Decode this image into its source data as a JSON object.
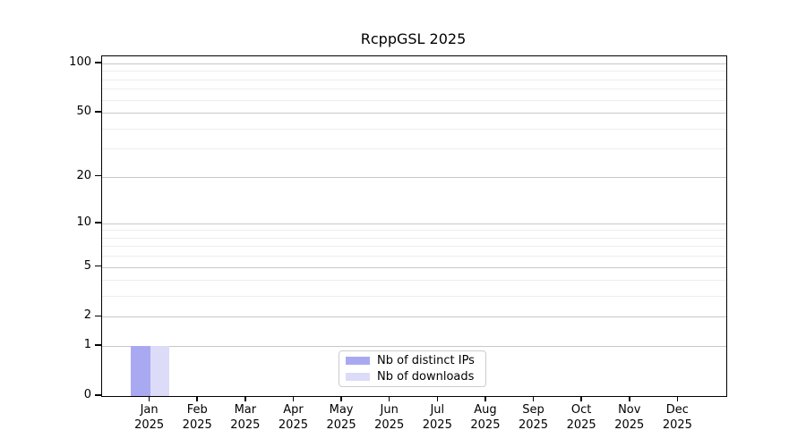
{
  "chart_data": {
    "type": "bar",
    "title": "RcppGSL 2025",
    "year": "2025",
    "months": [
      "Jan",
      "Feb",
      "Mar",
      "Apr",
      "May",
      "Jun",
      "Jul",
      "Aug",
      "Sep",
      "Oct",
      "Nov",
      "Dec"
    ],
    "categories": [
      "Jan 2025",
      "Feb 2025",
      "Mar 2025",
      "Apr 2025",
      "May 2025",
      "Jun 2025",
      "Jul 2025",
      "Aug 2025",
      "Sep 2025",
      "Oct 2025",
      "Nov 2025",
      "Dec 2025"
    ],
    "series": [
      {
        "name": "Nb of distinct IPs",
        "color": "#a9a9f2",
        "values": [
          1,
          0,
          0,
          0,
          0,
          0,
          0,
          0,
          0,
          0,
          0,
          0
        ]
      },
      {
        "name": "Nb of downloads",
        "color": "#dcdcf8",
        "values": [
          1,
          0,
          0,
          0,
          0,
          0,
          0,
          0,
          0,
          0,
          0,
          0
        ]
      }
    ],
    "xlabel": "",
    "ylabel": "",
    "yscale": "log1p",
    "ylim": [
      0,
      110
    ],
    "grid": "horizontal",
    "major_ticks": [
      {
        "value": 0,
        "label": "0"
      },
      {
        "value": 1,
        "label": "1"
      },
      {
        "value": 2,
        "label": "2"
      },
      {
        "value": 5,
        "label": "5"
      },
      {
        "value": 10,
        "label": "10"
      },
      {
        "value": 20,
        "label": "20"
      },
      {
        "value": 50,
        "label": "50"
      },
      {
        "value": 100,
        "label": "100"
      }
    ],
    "minor_gridlines": [
      3,
      4,
      6,
      7,
      8,
      9,
      30,
      40,
      60,
      70,
      80,
      90
    ],
    "legend": {
      "position": "lower center",
      "entries": [
        "Nb of distinct IPs",
        "Nb of downloads"
      ]
    },
    "colors": {
      "major_grid": "#c8c8c8",
      "minor_grid": "#ededed",
      "axis": "#000000",
      "background": "#ffffff"
    }
  }
}
